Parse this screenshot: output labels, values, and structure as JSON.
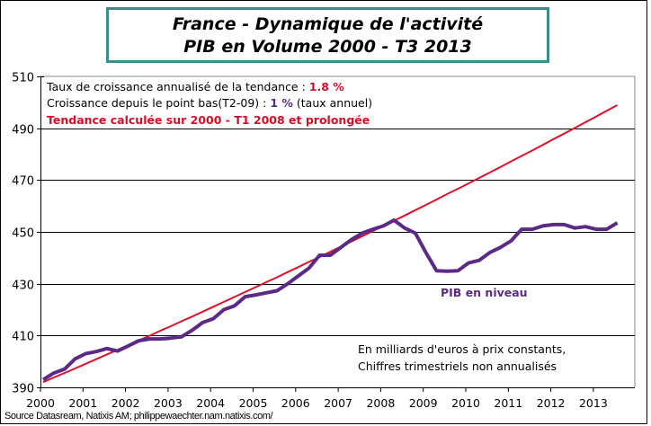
{
  "title": {
    "line1": "France - Dynamique de l'activité",
    "line2": "PIB en Volume 2000 - T3 2013"
  },
  "notes": {
    "trend_rate_label": "Taux de croissance annualisé de la tendance :",
    "trend_rate_value": "1.8 %",
    "since_low_label": "Croissance depuis le point bas(T2-09) :",
    "since_low_value": "1 %",
    "since_low_suffix": "(taux annuel)",
    "trend_method": "Tendance calculée sur 2000 - T1 2008 et prolongée",
    "units_line1": "En milliards  d'euros à prix constants,",
    "units_line2": "Chiffres trimestriels non annualisés"
  },
  "source": "Source Datasream, Natixis AM;  philippewaechter.nam.natixis.com/",
  "chart_data": {
    "type": "line",
    "title": "France - Dynamique de l'activité / PIB en Volume 2000 - T3 2013",
    "frequency": "quarterly",
    "start": "2000",
    "ylim": [
      390,
      510
    ],
    "yticks": [
      "390",
      "410",
      "430",
      "450",
      "470",
      "490",
      "510"
    ],
    "xticks": [
      "2000",
      "2001",
      "2002",
      "2003",
      "2004",
      "2005",
      "2006",
      "2007",
      "2008",
      "2009",
      "2010",
      "2011",
      "2012",
      "2013"
    ],
    "grid": "horizontal",
    "series": [
      {
        "name": "PIB en niveau",
        "color": "#5b2a86",
        "values": [
          393,
          395.5,
          397,
          401,
          403,
          403.8,
          405,
          404,
          406,
          408,
          408.7,
          408.7,
          409,
          409.5,
          412,
          415,
          416.5,
          420,
          421.5,
          425,
          425.7,
          426.5,
          427.3,
          430,
          433,
          436,
          441,
          441,
          444,
          447,
          449.5,
          451,
          452.3,
          454.5,
          451.5,
          449.5,
          442,
          435,
          434.8,
          435,
          438,
          439,
          442,
          444,
          446.5,
          451,
          451,
          452.3,
          452.8,
          452.8,
          451.5,
          452,
          451,
          451,
          453.5
        ]
      },
      {
        "name": "Tendance",
        "color": "#e0102a",
        "values": [
          392,
          393.8,
          395.5,
          397.3,
          399.1,
          400.9,
          402.7,
          404.5,
          406.3,
          408.1,
          409.9,
          411.8,
          413.6,
          415.5,
          417.3,
          419.2,
          421.1,
          423.0,
          424.9,
          426.8,
          428.7,
          430.6,
          432.5,
          434.5,
          436.4,
          438.4,
          440.3,
          442.3,
          444.3,
          446.3,
          448.3,
          450.3,
          452.3,
          454.3,
          456.3,
          458.4,
          460.4,
          462.5,
          464.6,
          466.6,
          468.7,
          470.8,
          472.9,
          475.0,
          477.2,
          479.3,
          481.4,
          483.6,
          485.8,
          487.9,
          490.1,
          492.3,
          494.5,
          496.7,
          498.9
        ]
      }
    ]
  }
}
